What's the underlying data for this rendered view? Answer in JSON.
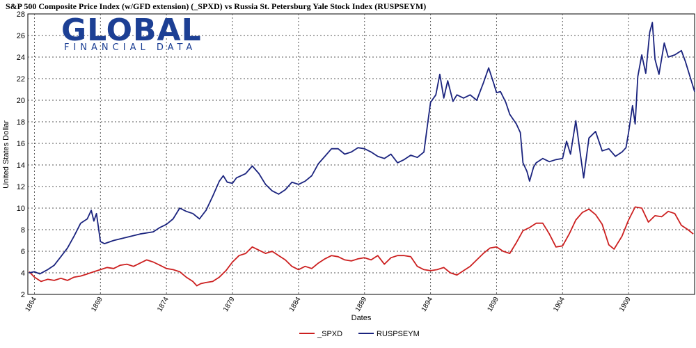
{
  "logo": {
    "main": "GLOBAL",
    "sub": "FINANCIAL DATA",
    "color": "#1c3f94"
  },
  "chart_data": {
    "type": "line",
    "title": "S&P 500 Composite Price Index (w/GFD extension) (_SPXD)  vs  Russia St. Petersburg Yale Stock Index (RUSPSEYM)",
    "xlabel": "Dates",
    "ylabel": "United States Dollar",
    "xlim": [
      1863.5,
      1914.0
    ],
    "ylim": [
      2,
      28
    ],
    "y_ticks": [
      2,
      4,
      6,
      8,
      10,
      12,
      14,
      16,
      18,
      20,
      22,
      24,
      26,
      28
    ],
    "x_ticks": [
      "1864",
      "1869",
      "1874",
      "1879",
      "1884",
      "1889",
      "1894",
      "1899",
      "1904",
      "1909"
    ],
    "grid": true,
    "legend": "bottom-center",
    "series": [
      {
        "name": "_SPXD",
        "color": "#cc1f1f",
        "points": [
          [
            1863.6,
            4.1
          ],
          [
            1864.0,
            3.6
          ],
          [
            1864.5,
            3.2
          ],
          [
            1865.0,
            3.4
          ],
          [
            1865.5,
            3.3
          ],
          [
            1866.0,
            3.5
          ],
          [
            1866.5,
            3.3
          ],
          [
            1867.0,
            3.6
          ],
          [
            1867.5,
            3.7
          ],
          [
            1868.0,
            3.9
          ],
          [
            1868.5,
            4.1
          ],
          [
            1869.0,
            4.3
          ],
          [
            1869.5,
            4.5
          ],
          [
            1870.0,
            4.4
          ],
          [
            1870.5,
            4.7
          ],
          [
            1871.0,
            4.8
          ],
          [
            1871.5,
            4.6
          ],
          [
            1872.0,
            4.9
          ],
          [
            1872.5,
            5.2
          ],
          [
            1873.0,
            5.0
          ],
          [
            1873.5,
            4.7
          ],
          [
            1874.0,
            4.4
          ],
          [
            1874.5,
            4.3
          ],
          [
            1875.0,
            4.1
          ],
          [
            1875.5,
            3.6
          ],
          [
            1876.0,
            3.2
          ],
          [
            1876.3,
            2.8
          ],
          [
            1876.6,
            3.0
          ],
          [
            1877.0,
            3.1
          ],
          [
            1877.5,
            3.2
          ],
          [
            1878.0,
            3.6
          ],
          [
            1878.5,
            4.2
          ],
          [
            1879.0,
            5.0
          ],
          [
            1879.5,
            5.6
          ],
          [
            1880.0,
            5.8
          ],
          [
            1880.5,
            6.4
          ],
          [
            1881.0,
            6.1
          ],
          [
            1881.5,
            5.8
          ],
          [
            1882.0,
            6.0
          ],
          [
            1882.5,
            5.6
          ],
          [
            1883.0,
            5.2
          ],
          [
            1883.5,
            4.6
          ],
          [
            1884.0,
            4.3
          ],
          [
            1884.5,
            4.6
          ],
          [
            1885.0,
            4.4
          ],
          [
            1885.5,
            4.9
          ],
          [
            1886.0,
            5.3
          ],
          [
            1886.5,
            5.6
          ],
          [
            1887.0,
            5.5
          ],
          [
            1887.5,
            5.2
          ],
          [
            1888.0,
            5.1
          ],
          [
            1888.5,
            5.3
          ],
          [
            1889.0,
            5.4
          ],
          [
            1889.5,
            5.2
          ],
          [
            1890.0,
            5.6
          ],
          [
            1890.5,
            4.8
          ],
          [
            1891.0,
            5.4
          ],
          [
            1891.5,
            5.6
          ],
          [
            1892.0,
            5.6
          ],
          [
            1892.5,
            5.5
          ],
          [
            1893.0,
            4.6
          ],
          [
            1893.5,
            4.3
          ],
          [
            1894.0,
            4.2
          ],
          [
            1894.5,
            4.3
          ],
          [
            1895.0,
            4.5
          ],
          [
            1895.5,
            4.0
          ],
          [
            1896.0,
            3.8
          ],
          [
            1896.5,
            4.2
          ],
          [
            1897.0,
            4.6
          ],
          [
            1897.5,
            5.2
          ],
          [
            1898.0,
            5.8
          ],
          [
            1898.5,
            6.3
          ],
          [
            1899.0,
            6.4
          ],
          [
            1899.5,
            6.0
          ],
          [
            1900.0,
            5.8
          ],
          [
            1900.5,
            6.8
          ],
          [
            1901.0,
            7.9
          ],
          [
            1901.5,
            8.2
          ],
          [
            1902.0,
            8.6
          ],
          [
            1902.5,
            8.6
          ],
          [
            1903.0,
            7.6
          ],
          [
            1903.5,
            6.4
          ],
          [
            1904.0,
            6.5
          ],
          [
            1904.5,
            7.6
          ],
          [
            1905.0,
            8.9
          ],
          [
            1905.5,
            9.6
          ],
          [
            1906.0,
            9.9
          ],
          [
            1906.5,
            9.4
          ],
          [
            1907.0,
            8.5
          ],
          [
            1907.5,
            6.6
          ],
          [
            1907.9,
            6.2
          ],
          [
            1908.5,
            7.4
          ],
          [
            1909.0,
            8.9
          ],
          [
            1909.5,
            10.1
          ],
          [
            1910.0,
            10.0
          ],
          [
            1910.5,
            8.7
          ],
          [
            1911.0,
            9.3
          ],
          [
            1911.5,
            9.2
          ],
          [
            1912.0,
            9.7
          ],
          [
            1912.5,
            9.5
          ],
          [
            1913.0,
            8.4
          ],
          [
            1913.5,
            8.0
          ],
          [
            1913.9,
            7.6
          ]
        ]
      },
      {
        "name": "RUSPSEYM",
        "color": "#1a237e",
        "points": [
          [
            1863.6,
            4.0
          ],
          [
            1864.0,
            4.1
          ],
          [
            1864.4,
            3.9
          ],
          [
            1865.0,
            4.3
          ],
          [
            1865.5,
            4.7
          ],
          [
            1866.0,
            5.5
          ],
          [
            1866.5,
            6.3
          ],
          [
            1867.0,
            7.4
          ],
          [
            1867.5,
            8.6
          ],
          [
            1868.0,
            9.0
          ],
          [
            1868.3,
            9.8
          ],
          [
            1868.5,
            8.8
          ],
          [
            1868.7,
            9.5
          ],
          [
            1869.0,
            6.9
          ],
          [
            1869.3,
            6.7
          ],
          [
            1870.0,
            7.0
          ],
          [
            1871.0,
            7.3
          ],
          [
            1872.0,
            7.6
          ],
          [
            1873.0,
            7.8
          ],
          [
            1873.5,
            8.2
          ],
          [
            1874.0,
            8.5
          ],
          [
            1874.5,
            9.0
          ],
          [
            1875.0,
            10.0
          ],
          [
            1875.5,
            9.7
          ],
          [
            1876.0,
            9.5
          ],
          [
            1876.5,
            9.0
          ],
          [
            1877.0,
            9.8
          ],
          [
            1877.5,
            11.1
          ],
          [
            1878.0,
            12.5
          ],
          [
            1878.3,
            13.0
          ],
          [
            1878.6,
            12.4
          ],
          [
            1879.0,
            12.3
          ],
          [
            1879.3,
            12.8
          ],
          [
            1880.0,
            13.2
          ],
          [
            1880.5,
            13.9
          ],
          [
            1881.0,
            13.2
          ],
          [
            1881.5,
            12.2
          ],
          [
            1882.0,
            11.6
          ],
          [
            1882.5,
            11.3
          ],
          [
            1883.0,
            11.7
          ],
          [
            1883.5,
            12.4
          ],
          [
            1884.0,
            12.2
          ],
          [
            1884.5,
            12.5
          ],
          [
            1885.0,
            13.0
          ],
          [
            1885.5,
            14.1
          ],
          [
            1886.0,
            14.8
          ],
          [
            1886.5,
            15.5
          ],
          [
            1887.0,
            15.5
          ],
          [
            1887.5,
            15.0
          ],
          [
            1888.0,
            15.2
          ],
          [
            1888.5,
            15.6
          ],
          [
            1889.0,
            15.5
          ],
          [
            1889.5,
            15.2
          ],
          [
            1890.0,
            14.8
          ],
          [
            1890.5,
            14.6
          ],
          [
            1891.0,
            15.0
          ],
          [
            1891.5,
            14.2
          ],
          [
            1892.0,
            14.5
          ],
          [
            1892.5,
            14.9
          ],
          [
            1893.0,
            14.7
          ],
          [
            1893.5,
            15.2
          ],
          [
            1893.8,
            18.0
          ],
          [
            1894.0,
            19.8
          ],
          [
            1894.4,
            20.5
          ],
          [
            1894.7,
            22.4
          ],
          [
            1895.0,
            20.2
          ],
          [
            1895.3,
            21.8
          ],
          [
            1895.7,
            19.9
          ],
          [
            1896.0,
            20.5
          ],
          [
            1896.5,
            20.2
          ],
          [
            1897.0,
            20.5
          ],
          [
            1897.5,
            20.0
          ],
          [
            1898.0,
            21.6
          ],
          [
            1898.4,
            23.0
          ],
          [
            1898.8,
            21.5
          ],
          [
            1899.0,
            20.7
          ],
          [
            1899.3,
            20.8
          ],
          [
            1899.7,
            19.8
          ],
          [
            1900.0,
            18.7
          ],
          [
            1900.5,
            17.8
          ],
          [
            1900.8,
            17.0
          ],
          [
            1901.0,
            14.2
          ],
          [
            1901.3,
            13.4
          ],
          [
            1901.5,
            12.5
          ],
          [
            1901.8,
            13.8
          ],
          [
            1902.0,
            14.2
          ],
          [
            1902.5,
            14.6
          ],
          [
            1903.0,
            14.3
          ],
          [
            1903.5,
            14.5
          ],
          [
            1904.0,
            14.6
          ],
          [
            1904.3,
            16.2
          ],
          [
            1904.6,
            15.0
          ],
          [
            1905.0,
            18.1
          ],
          [
            1905.3,
            15.4
          ],
          [
            1905.6,
            12.8
          ],
          [
            1906.0,
            16.5
          ],
          [
            1906.5,
            17.1
          ],
          [
            1907.0,
            15.3
          ],
          [
            1907.5,
            15.5
          ],
          [
            1908.0,
            14.8
          ],
          [
            1908.5,
            15.2
          ],
          [
            1908.8,
            15.6
          ],
          [
            1909.0,
            17.0
          ],
          [
            1909.3,
            19.5
          ],
          [
            1909.5,
            17.8
          ],
          [
            1909.7,
            22.2
          ],
          [
            1910.0,
            24.2
          ],
          [
            1910.3,
            22.5
          ],
          [
            1910.6,
            26.3
          ],
          [
            1910.8,
            27.2
          ],
          [
            1911.0,
            23.8
          ],
          [
            1911.3,
            22.4
          ],
          [
            1911.7,
            25.3
          ],
          [
            1912.0,
            24.0
          ],
          [
            1912.5,
            24.2
          ],
          [
            1913.0,
            24.6
          ],
          [
            1913.3,
            23.6
          ],
          [
            1913.7,
            22.0
          ],
          [
            1914.0,
            20.8
          ]
        ]
      }
    ]
  }
}
